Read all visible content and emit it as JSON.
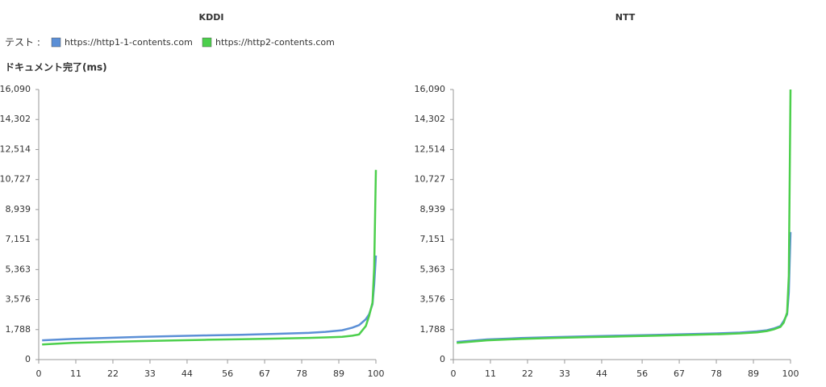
{
  "legend_label": "テスト :",
  "y_label": "ドキュメント完了(ms)",
  "chart_data": [
    {
      "type": "line",
      "title": "KDDI",
      "x": [
        1,
        10,
        20,
        30,
        40,
        50,
        60,
        70,
        80,
        85,
        90,
        93,
        95,
        97,
        98,
        99,
        99.5,
        100
      ],
      "series": [
        {
          "name": "https://http1-1-contents.com",
          "color": "#5b8fd6",
          "values": [
            1150,
            1230,
            1290,
            1350,
            1400,
            1440,
            1480,
            1530,
            1590,
            1650,
            1750,
            1900,
            2050,
            2400,
            2700,
            3300,
            4500,
            6200
          ]
        },
        {
          "name": "https://http2-contents.com",
          "color": "#4ccf4c",
          "values": [
            900,
            1000,
            1050,
            1100,
            1140,
            1180,
            1210,
            1250,
            1290,
            1320,
            1360,
            1420,
            1500,
            2000,
            2600,
            3400,
            5500,
            11300
          ]
        }
      ],
      "xlim": [
        0,
        100
      ],
      "xticks": [
        0,
        11,
        22,
        33,
        44,
        56,
        67,
        78,
        89,
        100
      ],
      "ylim": [
        0,
        16090
      ],
      "yticks": [
        0,
        {
          "value": 1788,
          "label": "1,788"
        },
        {
          "value": 3576,
          "label": "3,576"
        },
        {
          "value": 5363,
          "label": "5,363"
        },
        {
          "value": 7151,
          "label": "7,151"
        },
        {
          "value": 8939,
          "label": "8,939"
        },
        {
          "value": 10727,
          "label": "10,727"
        },
        {
          "value": 12514,
          "label": "12,514"
        },
        {
          "value": 14302,
          "label": "14,302"
        },
        {
          "value": 16090,
          "label": "16,090"
        }
      ]
    },
    {
      "type": "line",
      "title": "NTT",
      "x": [
        1,
        10,
        20,
        30,
        40,
        50,
        60,
        70,
        80,
        85,
        90,
        93,
        95,
        97,
        98,
        99,
        99.5,
        100
      ],
      "series": [
        {
          "color": "#5b8fd6",
          "values": [
            1050,
            1200,
            1280,
            1340,
            1390,
            1430,
            1470,
            1520,
            1570,
            1610,
            1680,
            1750,
            1850,
            2000,
            2300,
            2700,
            4000,
            7600
          ]
        },
        {
          "color": "#4ccf4c",
          "values": [
            1000,
            1150,
            1230,
            1290,
            1340,
            1380,
            1420,
            1470,
            1520,
            1560,
            1620,
            1700,
            1800,
            1950,
            2200,
            2800,
            5000,
            16090
          ]
        }
      ],
      "xlim": [
        0,
        100
      ],
      "xticks": [
        0,
        11,
        22,
        33,
        44,
        56,
        67,
        78,
        89,
        100
      ],
      "ylim": [
        0,
        16090
      ],
      "yticks": [
        0,
        {
          "value": 1788,
          "label": "1,788"
        },
        {
          "value": 3576,
          "label": "3,576"
        },
        {
          "value": 5363,
          "label": "5,363"
        },
        {
          "value": 7151,
          "label": "7,151"
        },
        {
          "value": 8939,
          "label": "8,939"
        },
        {
          "value": 10727,
          "label": "10,727"
        },
        {
          "value": 12514,
          "label": "12,514"
        },
        {
          "value": 14302,
          "label": "14,302"
        },
        {
          "value": 16090,
          "label": "16,090"
        }
      ]
    }
  ]
}
